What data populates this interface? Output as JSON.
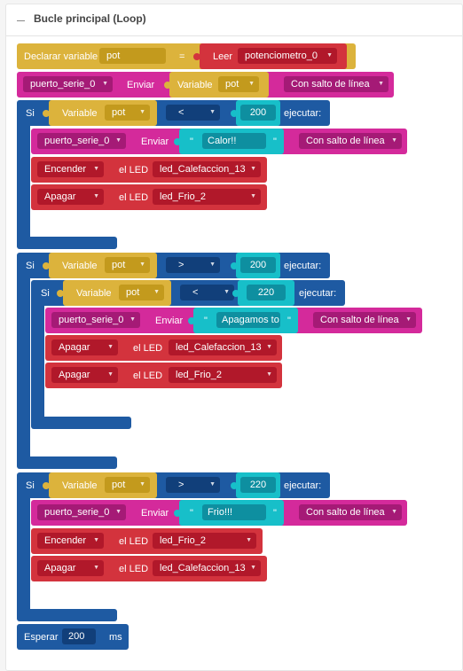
{
  "header": {
    "title": "Bucle principal (Loop)"
  },
  "colors": {
    "variables": "#dcb33c",
    "pins": "#d3333d",
    "serial": "#d42a9b",
    "control": "#1e5aa2",
    "numbers": "#17bfc9"
  },
  "declare": {
    "label": "Declarar variable",
    "var": "pot",
    "eq": "=",
    "read_label": "Leer",
    "sensor": "potenciometro_0"
  },
  "serial1": {
    "port": "puerto_serie_0",
    "send": "Enviar",
    "variable_label": "Variable",
    "var": "pot",
    "newline": "Con salto de línea"
  },
  "if1": {
    "si": "Si",
    "variable_label": "Variable",
    "var": "pot",
    "op": "<",
    "value": "200",
    "exec": "ejecutar:",
    "serial": {
      "port": "puerto_serie_0",
      "send": "Enviar",
      "quote_open": "\"",
      "text": "Calor!!",
      "quote_close": "\"",
      "newline": "Con salto de línea"
    },
    "led1": {
      "action": "Encender",
      "label": "el LED",
      "led": "led_Calefaccion_13"
    },
    "led2": {
      "action": "Apagar",
      "label": "el LED",
      "led": "led_Frio_2"
    }
  },
  "if2": {
    "si": "Si",
    "variable_label": "Variable",
    "var": "pot",
    "op": ">",
    "value": "200",
    "exec": "ejecutar:",
    "inner": {
      "si": "Si",
      "variable_label": "Variable",
      "var": "pot",
      "op": "<",
      "value": "220",
      "exec": "ejecutar:",
      "serial": {
        "port": "puerto_serie_0",
        "send": "Enviar",
        "quote_open": "\"",
        "text": "Apagamos to",
        "quote_close": "\"",
        "newline": "Con salto de línea"
      },
      "led1": {
        "action": "Apagar",
        "label": "el LED",
        "led": "led_Calefaccion_13"
      },
      "led2": {
        "action": "Apagar",
        "label": "el LED",
        "led": "led_Frio_2"
      }
    }
  },
  "if3": {
    "si": "Si",
    "variable_label": "Variable",
    "var": "pot",
    "op": ">",
    "value": "220",
    "exec": "ejecutar:",
    "serial": {
      "port": "puerto_serie_0",
      "send": "Enviar",
      "quote_open": "\"",
      "text": "Frio!!!",
      "quote_close": "\"",
      "newline": "Con salto de línea"
    },
    "led1": {
      "action": "Encender",
      "label": "el LED",
      "led": "led_Frio_2"
    },
    "led2": {
      "action": "Apagar",
      "label": "el LED",
      "led": "led_Calefaccion_13"
    }
  },
  "wait": {
    "label": "Esperar",
    "value": "200",
    "unit": "ms"
  },
  "icons": {
    "collapse": "minus-icon",
    "dropdown": "caret-down-icon"
  }
}
